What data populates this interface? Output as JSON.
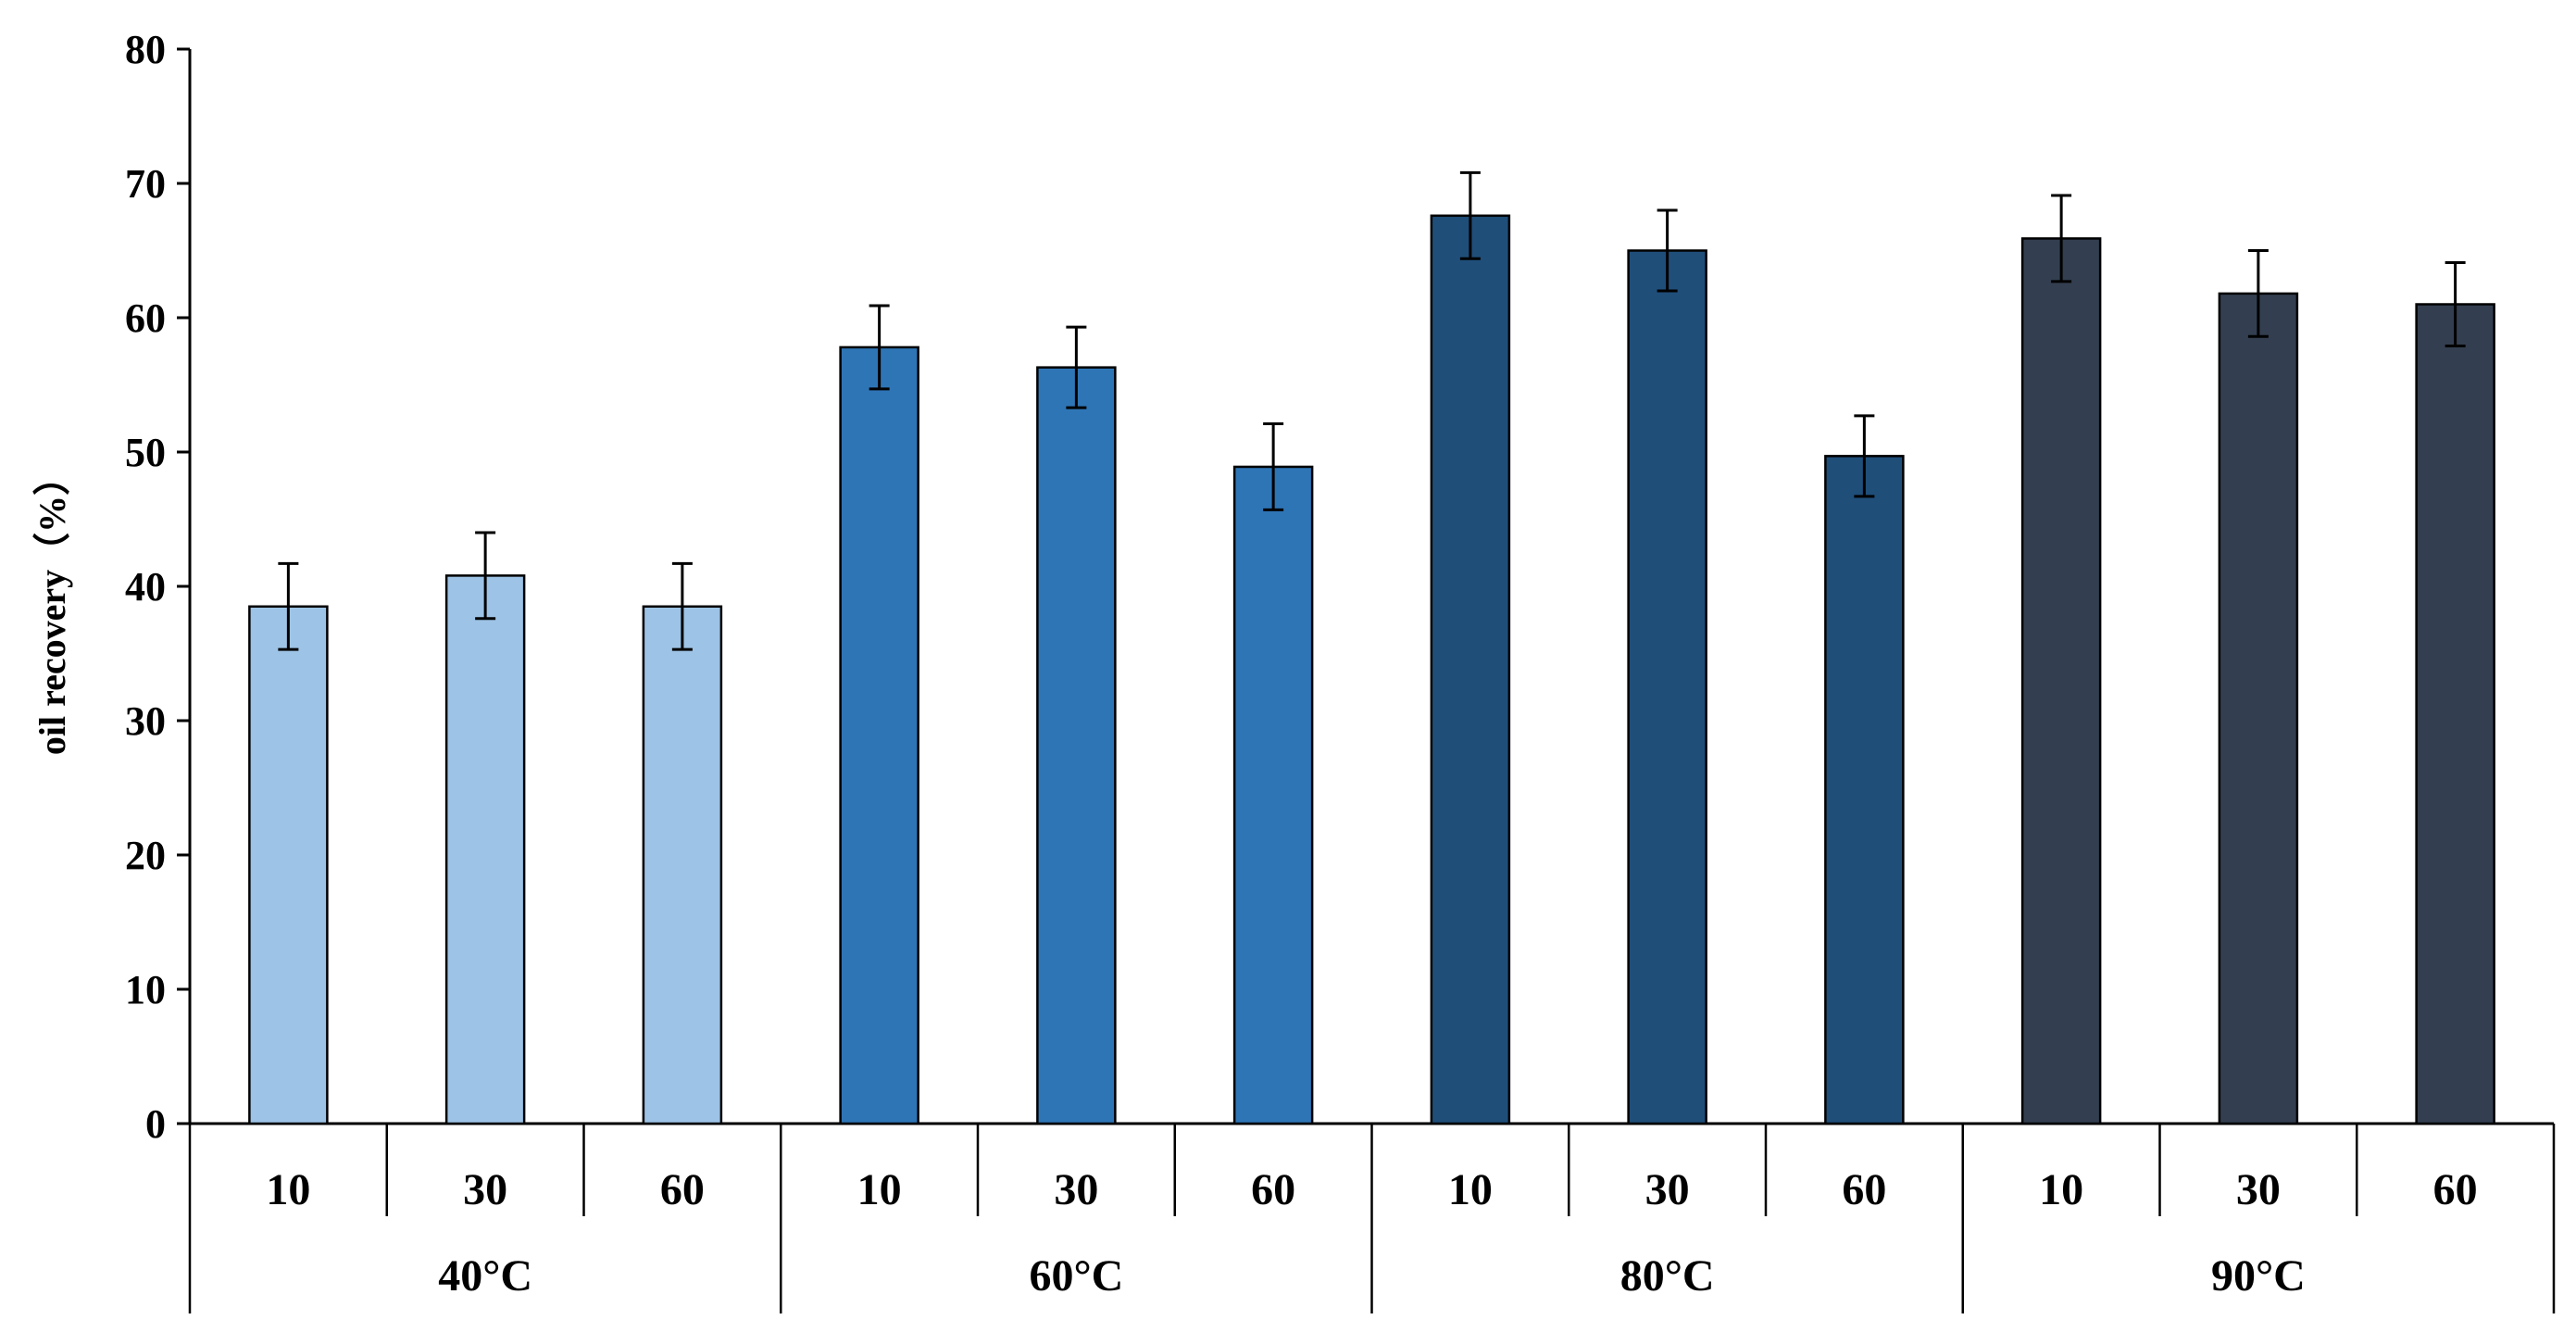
{
  "chart_data": {
    "type": "bar",
    "title": "",
    "ylabel": "oil recovery（%）",
    "xlabel": "",
    "ylim": [
      0,
      80
    ],
    "yticks": [
      0,
      10,
      20,
      30,
      40,
      50,
      60,
      70,
      80
    ],
    "grid": false,
    "groups": [
      {
        "name": "40°C",
        "color": "#9dc3e6"
      },
      {
        "name": "60°C",
        "color": "#2e75b6"
      },
      {
        "name": "80°C",
        "color": "#1f4e79"
      },
      {
        "name": "90°C",
        "color": "#333f50"
      }
    ],
    "categories": [
      "10",
      "30",
      "60"
    ],
    "bars": [
      {
        "group": "40°C",
        "category": "10",
        "value": 38.5,
        "error": 3.2
      },
      {
        "group": "40°C",
        "category": "30",
        "value": 40.8,
        "error": 3.2
      },
      {
        "group": "40°C",
        "category": "60",
        "value": 38.5,
        "error": 3.2
      },
      {
        "group": "60°C",
        "category": "10",
        "value": 57.8,
        "error": 3.1
      },
      {
        "group": "60°C",
        "category": "30",
        "value": 56.3,
        "error": 3.0
      },
      {
        "group": "60°C",
        "category": "60",
        "value": 48.9,
        "error": 3.2
      },
      {
        "group": "80°C",
        "category": "10",
        "value": 67.6,
        "error": 3.2
      },
      {
        "group": "80°C",
        "category": "30",
        "value": 65.0,
        "error": 3.0
      },
      {
        "group": "80°C",
        "category": "60",
        "value": 49.7,
        "error": 3.0
      },
      {
        "group": "90°C",
        "category": "10",
        "value": 65.9,
        "error": 3.2
      },
      {
        "group": "90°C",
        "category": "30",
        "value": 61.8,
        "error": 3.2
      },
      {
        "group": "90°C",
        "category": "60",
        "value": 61.0,
        "error": 3.1
      }
    ]
  }
}
